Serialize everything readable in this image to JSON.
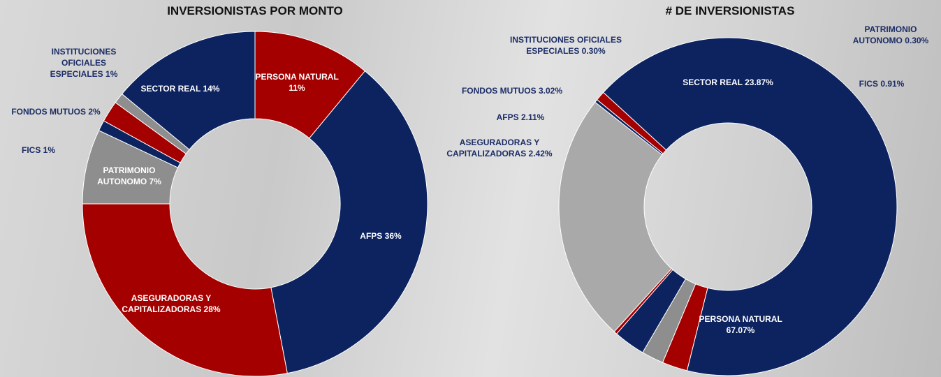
{
  "chart_data": [
    {
      "type": "pie",
      "title": "INVERSIONISTAS POR MONTO",
      "categories": [
        "PERSONA NATURAL",
        "AFPS",
        "ASEGURADORAS Y CAPITALIZADORAS",
        "PATRIMONIO AUTONOMO",
        "FICS",
        "FONDOS MUTUOS",
        "INSTITUCIONES OFICIALES ESPECIALES",
        "SECTOR REAL"
      ],
      "values": [
        11,
        36,
        28,
        7,
        1,
        2,
        1,
        14
      ],
      "value_labels": [
        "11%",
        "36%",
        "28%",
        "7%",
        "1%",
        "2%",
        "1%",
        "14%"
      ],
      "colors": [
        "#a50000",
        "#0c2360",
        "#a50000",
        "#8e8e8e",
        "#0c2360",
        "#a50000",
        "#8e8e8e",
        "#0c2360"
      ]
    },
    {
      "type": "pie",
      "title": "# DE INVERSIONISTAS",
      "categories": [
        "PATRIMONIO AUTONOMO",
        "FICS",
        "PERSONA NATURAL",
        "ASEGURADORAS Y CAPITALIZADORAS",
        "AFPS",
        "FONDOS MUTUOS",
        "INSTITUCIONES OFICIALES ESPECIALES",
        "SECTOR REAL"
      ],
      "values": [
        0.3,
        0.91,
        67.07,
        2.42,
        2.11,
        3.02,
        0.3,
        23.87
      ],
      "value_labels": [
        "0.30%",
        "0.91%",
        "67.07%",
        "2.42%",
        "2.11%",
        "3.02%",
        "0.30%",
        "23.87%"
      ],
      "colors": [
        "#0c2360",
        "#a50000",
        "#0c2360",
        "#a50000",
        "#8e8e8e",
        "#0c2360",
        "#a50000",
        "#a9a9a9"
      ]
    }
  ]
}
